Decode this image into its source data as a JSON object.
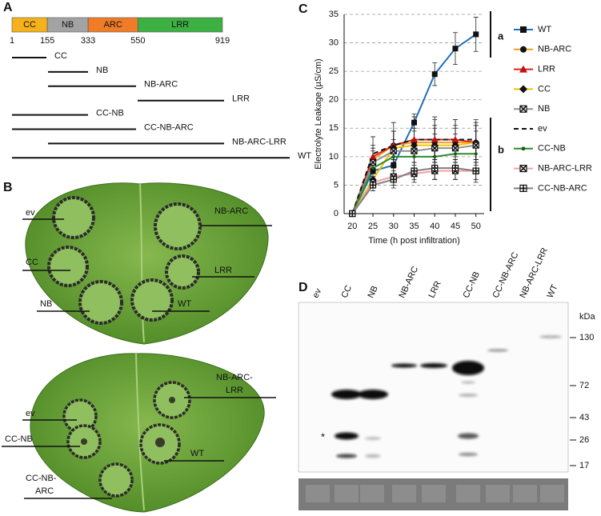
{
  "panel_labels": [
    "A",
    "B",
    "C",
    "D"
  ],
  "domains": {
    "names": [
      "CC",
      "NB",
      "ARC",
      "LRR"
    ],
    "colors": [
      "#f5b21b",
      "#a3a3a3",
      "#f07c28",
      "#3cb043"
    ],
    "positions": [
      1,
      155,
      333,
      550,
      919
    ]
  },
  "constructs": [
    "CC",
    "NB",
    "NB-ARC",
    "LRR",
    "CC-NB",
    "CC-NB-ARC",
    "NB-ARC-LRR",
    "WT"
  ],
  "leaves": [
    {
      "labels": [
        [
          "ev"
        ],
        [
          "NB-ARC"
        ],
        [
          "CC"
        ],
        [
          "LRR"
        ],
        [
          "NB"
        ],
        [
          "WT"
        ]
      ]
    },
    {
      "labels": [
        [
          "ev"
        ],
        [
          "NB-ARC-",
          "LRR"
        ],
        [
          "CC-NB"
        ],
        [
          "WT"
        ],
        [
          "CC-NB-",
          "ARC"
        ]
      ]
    }
  ],
  "chart_data": {
    "type": "line",
    "x_label": "Time (h post infiltration)",
    "y_label": "Electrolyte Leakage (µS/cm)",
    "x": [
      20,
      25,
      30,
      35,
      40,
      45,
      50
    ],
    "xlim": [
      18,
      52
    ],
    "xticks": [
      20,
      25,
      30,
      35,
      40,
      45,
      50
    ],
    "ylim": [
      0,
      35
    ],
    "yticks": [
      0,
      5,
      10,
      15,
      20,
      25,
      30,
      35
    ],
    "grid": true,
    "annotations": [
      "a",
      "b"
    ],
    "series": [
      {
        "name": "WT",
        "color": "#1f6fbf",
        "marker": "square",
        "marker_color": "#111111",
        "values": [
          0,
          7.5,
          8.5,
          16,
          24.5,
          29,
          31.5
        ],
        "errors": [
          0,
          1.5,
          1.5,
          1.5,
          2,
          2.8,
          3
        ]
      },
      {
        "name": "NB-ARC",
        "color": "#f0a020",
        "marker": "circle",
        "marker_color": "#111111",
        "values": [
          0,
          9.5,
          12,
          12.5,
          12.5,
          12.5,
          12.5
        ],
        "errors": [
          0,
          2,
          2.5,
          2.5,
          3,
          3,
          3
        ]
      },
      {
        "name": "LRR",
        "color": "#e02020",
        "marker": "triangle",
        "marker_color": "#c01010",
        "values": [
          0,
          10,
          12,
          13,
          13,
          13,
          12.5
        ],
        "errors": [
          0,
          2,
          2.5,
          3,
          3.5,
          3.5,
          3.5
        ]
      },
      {
        "name": "CC",
        "color": "#f2c200",
        "marker": "diamond",
        "marker_color": "#111111",
        "values": [
          0,
          6,
          11.5,
          12,
          12,
          12,
          12.5
        ],
        "errors": [
          0,
          1.5,
          3,
          3,
          3,
          3,
          3
        ]
      },
      {
        "name": "NB",
        "color": "#909090",
        "marker": "xsquare",
        "marker_color": "#111111",
        "values": [
          0,
          9,
          11,
          11,
          11.5,
          11.5,
          12
        ],
        "errors": [
          0,
          2,
          2,
          2,
          2.5,
          2.5,
          2.5
        ]
      },
      {
        "name": "ev",
        "color": "#111111",
        "marker": "none",
        "marker_color": "#111111",
        "dashed": true,
        "values": [
          0,
          10.5,
          12,
          13,
          13,
          13,
          13
        ],
        "errors": [
          0,
          3,
          4,
          4,
          4,
          3.5,
          3.5
        ]
      },
      {
        "name": "CC-NB",
        "color": "#2e8b2e",
        "marker": "dot",
        "marker_color": "#1a5c1a",
        "values": [
          0,
          8,
          10,
          10,
          10,
          10.5,
          10.5
        ],
        "errors": [
          0,
          1.5,
          2,
          2,
          2,
          2,
          2
        ]
      },
      {
        "name": "NB-ARC-LRR",
        "color": "#f4a0a0",
        "marker": "xsquare",
        "marker_color": "#111111",
        "values": [
          0,
          5.5,
          6.5,
          7,
          7.5,
          7.5,
          7.5
        ],
        "errors": [
          0,
          1,
          1.5,
          1.5,
          1.5,
          1.5,
          1.5
        ]
      },
      {
        "name": "CC-NB-ARC",
        "color": "#808080",
        "marker": "plussquare",
        "marker_color": "#111111",
        "values": [
          0,
          5,
          6,
          7.5,
          8,
          8,
          7.5
        ],
        "errors": [
          0,
          1,
          1.5,
          1.5,
          2,
          2,
          2
        ]
      }
    ]
  },
  "blot": {
    "lanes": [
      "ev",
      "CC",
      "NB",
      "NB-ARC",
      "LRR",
      "CC-NB",
      "CC-NB-ARC",
      "NB-ARC-LRR",
      "WT"
    ],
    "unit": "kDa",
    "markers": [
      130,
      72,
      43,
      26,
      17
    ],
    "asterisk": "*"
  }
}
